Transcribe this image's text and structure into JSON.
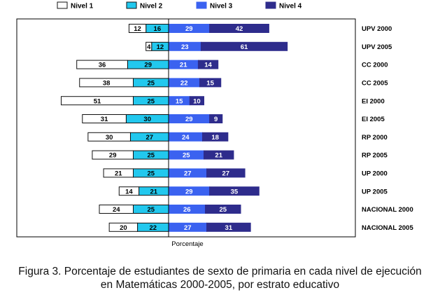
{
  "chart_data": {
    "type": "bar",
    "subtype": "diverging-stacked-horizontal",
    "categories": [
      "UPV 2000",
      "UPV 2005",
      "CC 2000",
      "CC 2005",
      "EI 2000",
      "EI 2005",
      "RP 2000",
      "RP 2005",
      "UP 2000",
      "UP 2005",
      "NACIONAL 2000",
      "NACIONAL  2005"
    ],
    "series": [
      {
        "name": "Nivel 1",
        "side": "left",
        "color": "#ffffff",
        "border": "#111111",
        "label_color": "#000000",
        "values": [
          12,
          4,
          36,
          38,
          51,
          31,
          30,
          29,
          21,
          14,
          24,
          20
        ]
      },
      {
        "name": "Nivel 2",
        "side": "left",
        "color": "#22c8ee",
        "border": "#111111",
        "label_color": "#000000",
        "values": [
          16,
          12,
          29,
          25,
          25,
          30,
          27,
          25,
          25,
          21,
          25,
          22
        ]
      },
      {
        "name": "Nivel 3",
        "side": "right",
        "color": "#3b62f0",
        "border": "#3b62f0",
        "label_color": "#ffffff",
        "values": [
          29,
          23,
          21,
          22,
          15,
          29,
          24,
          25,
          27,
          29,
          26,
          27
        ]
      },
      {
        "name": "Nivel 4",
        "side": "right",
        "color": "#2e2c8c",
        "border": "#2e2c8c",
        "label_color": "#ffffff",
        "values": [
          42,
          61,
          14,
          15,
          10,
          9,
          18,
          21,
          27,
          35,
          25,
          31
        ]
      }
    ],
    "xlabel": "Porcentaje",
    "legend_position": "top"
  },
  "caption": {
    "line1": "Figura 3. Porcentaje de estudiantes de sexto de primaria en cada nivel de ejecución",
    "line2": "en Matemáticas 2000-2005, por estrato educativo"
  }
}
